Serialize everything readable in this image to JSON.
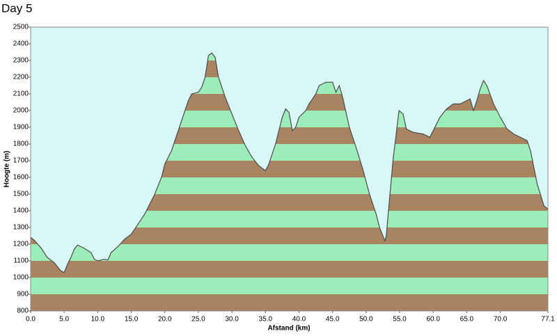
{
  "chart_data": {
    "type": "area",
    "title": "Day 5",
    "xlabel": "Afstand  (km)",
    "ylabel": "Hoogte (m)",
    "x": [
      0,
      0.5,
      1.5,
      2.5,
      3.5,
      4.5,
      5.0,
      5.5,
      6.0,
      6.5,
      7.0,
      7.5,
      8.0,
      9.0,
      9.5,
      10.0,
      11.0,
      11.5,
      12.0,
      13.0,
      14.0,
      15.0,
      16.0,
      17.0,
      17.5,
      18.5,
      19.5,
      20.0,
      21.0,
      22.0,
      23.0,
      23.5,
      24.0,
      25.0,
      25.5,
      26.0,
      26.5,
      27.0,
      27.5,
      28.0,
      29.0,
      30.0,
      31.0,
      32.0,
      33.0,
      34.0,
      35.0,
      35.5,
      36.5,
      37.5,
      38.0,
      38.5,
      39.0,
      39.5,
      40.0,
      41.0,
      41.5,
      42.5,
      43.0,
      44.0,
      45.0,
      45.5,
      46.0,
      46.5,
      47.5,
      48.5,
      49.5,
      50.5,
      51.5,
      52.0,
      52.8,
      53.0,
      54.0,
      54.9,
      55.5,
      56.0,
      57.0,
      58.5,
      59.5,
      60.0,
      61.0,
      62.0,
      63.0,
      64.0,
      65.0,
      65.5,
      66.0,
      66.5,
      67.0,
      67.5,
      68.0,
      69.0,
      70.0,
      71.0,
      72.0,
      73.0,
      74.0,
      74.5,
      75.5,
      76.5,
      77.1
    ],
    "values": [
      1240,
      1225,
      1180,
      1120,
      1090,
      1040,
      1030,
      1080,
      1120,
      1170,
      1195,
      1185,
      1175,
      1150,
      1110,
      1100,
      1110,
      1105,
      1150,
      1185,
      1230,
      1260,
      1320,
      1380,
      1420,
      1500,
      1600,
      1680,
      1760,
      1880,
      2000,
      2060,
      2100,
      2110,
      2140,
      2200,
      2330,
      2345,
      2320,
      2200,
      2080,
      1980,
      1880,
      1790,
      1720,
      1670,
      1640,
      1680,
      1800,
      1960,
      2010,
      1990,
      1880,
      1900,
      1960,
      2000,
      2040,
      2100,
      2150,
      2170,
      2170,
      2110,
      2150,
      2080,
      1900,
      1780,
      1650,
      1500,
      1380,
      1300,
      1220,
      1250,
      1700,
      2000,
      1980,
      1890,
      1870,
      1860,
      1840,
      1880,
      1960,
      2010,
      2040,
      2040,
      2060,
      2070,
      2000,
      2060,
      2130,
      2180,
      2150,
      2040,
      1960,
      1890,
      1860,
      1840,
      1820,
      1760,
      1560,
      1430,
      1410
    ],
    "xlim": [
      0,
      77.1
    ],
    "ylim": [
      800,
      2500
    ],
    "xticks": [
      {
        "value": 0,
        "label": "0.0"
      },
      {
        "value": 5,
        "label": "5.0"
      },
      {
        "value": 10,
        "label": "10.0"
      },
      {
        "value": 15,
        "label": "15.0"
      },
      {
        "value": 20,
        "label": "20.0"
      },
      {
        "value": 25,
        "label": "25.0"
      },
      {
        "value": 30,
        "label": "30.0"
      },
      {
        "value": 35,
        "label": "35.0"
      },
      {
        "value": 40,
        "label": "40.0"
      },
      {
        "value": 45,
        "label": "45.0"
      },
      {
        "value": 50,
        "label": "50.0"
      },
      {
        "value": 55,
        "label": "55.0"
      },
      {
        "value": 60,
        "label": "60.0"
      },
      {
        "value": 65,
        "label": "65.0"
      },
      {
        "value": 70,
        "label": "70.0"
      },
      {
        "value": 77.1,
        "label": "77.1"
      }
    ],
    "yticks": [
      800,
      900,
      1000,
      1100,
      1200,
      1300,
      1400,
      1500,
      1600,
      1700,
      1800,
      1900,
      2000,
      2100,
      2200,
      2300,
      2400,
      2500
    ],
    "band_colors": [
      "#a88463",
      "#9cedba"
    ],
    "line_color": "#4a4a4a",
    "background": "#d9f7f7"
  }
}
